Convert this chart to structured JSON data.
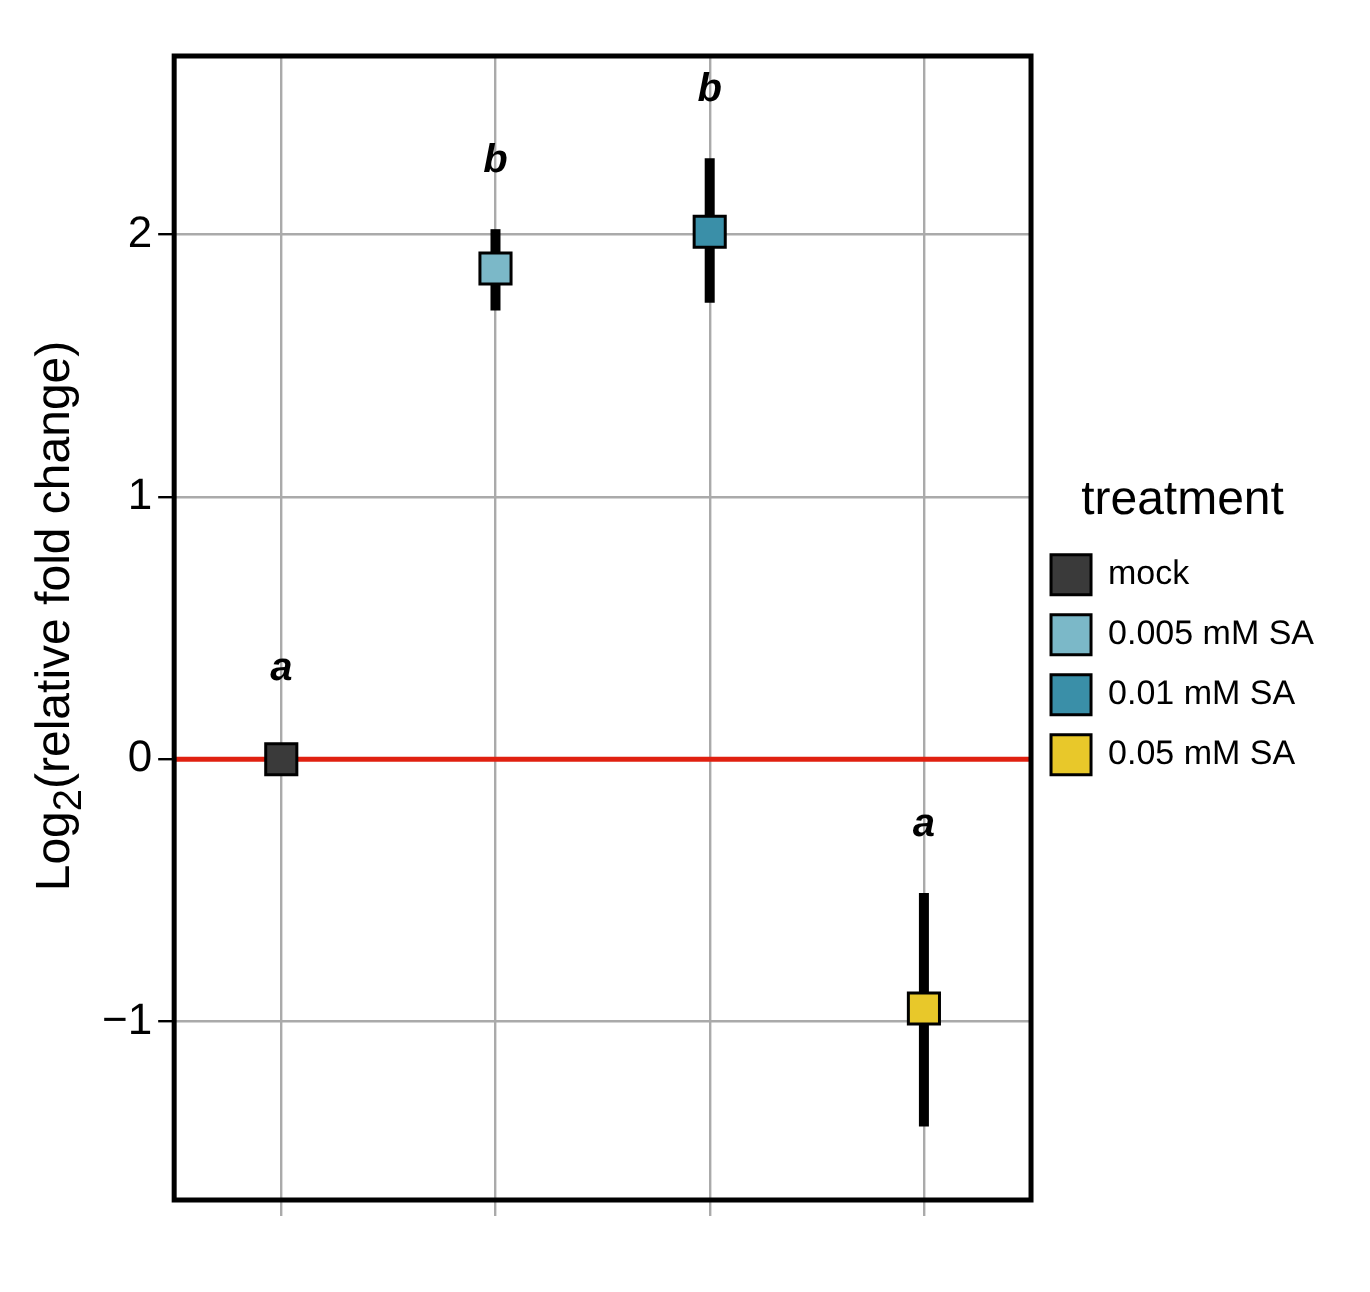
{
  "chart_data": {
    "type": "scatter",
    "ylabel": "Log$_{2}$(relative fold change)",
    "legend_title": "treatment",
    "categories": [
      null,
      null,
      null,
      null
    ],
    "series": [
      {
        "name": "mock",
        "color": "#3a3a3a",
        "values": [
          0,
          null,
          null,
          null
        ],
        "errors": [
          null,
          null,
          null,
          null
        ]
      },
      {
        "name": "0.005 mM SA",
        "color": "#7bb8c8",
        "values": [
          null,
          1.87,
          null,
          null
        ],
        "errors": [
          null,
          [
            1.71,
            2.02
          ],
          null,
          null
        ]
      },
      {
        "name": "0.01 mM SA",
        "color": "#3a8fa8",
        "values": [
          null,
          null,
          2.01,
          null
        ],
        "errors": [
          null,
          null,
          [
            1.74,
            2.29
          ],
          null
        ]
      },
      {
        "name": "0.05 mM SA",
        "color": "#e8c82a",
        "values": [
          null,
          null,
          null,
          -0.95
        ],
        "errors": [
          null,
          null,
          null,
          [
            -1.4,
            -0.51
          ]
        ]
      }
    ],
    "annotations": [
      "a",
      "b",
      "b",
      "a"
    ],
    "ref_lines": [
      {
        "axis": "y",
        "value": 0,
        "color": "#e02010"
      }
    ],
    "ylim": [
      -1.68,
      2.68
    ],
    "yticks": [
      -1,
      0,
      1,
      2
    ],
    "grid": true,
    "legend": "right",
    "marker": "square",
    "tick_labels": "y"
  }
}
